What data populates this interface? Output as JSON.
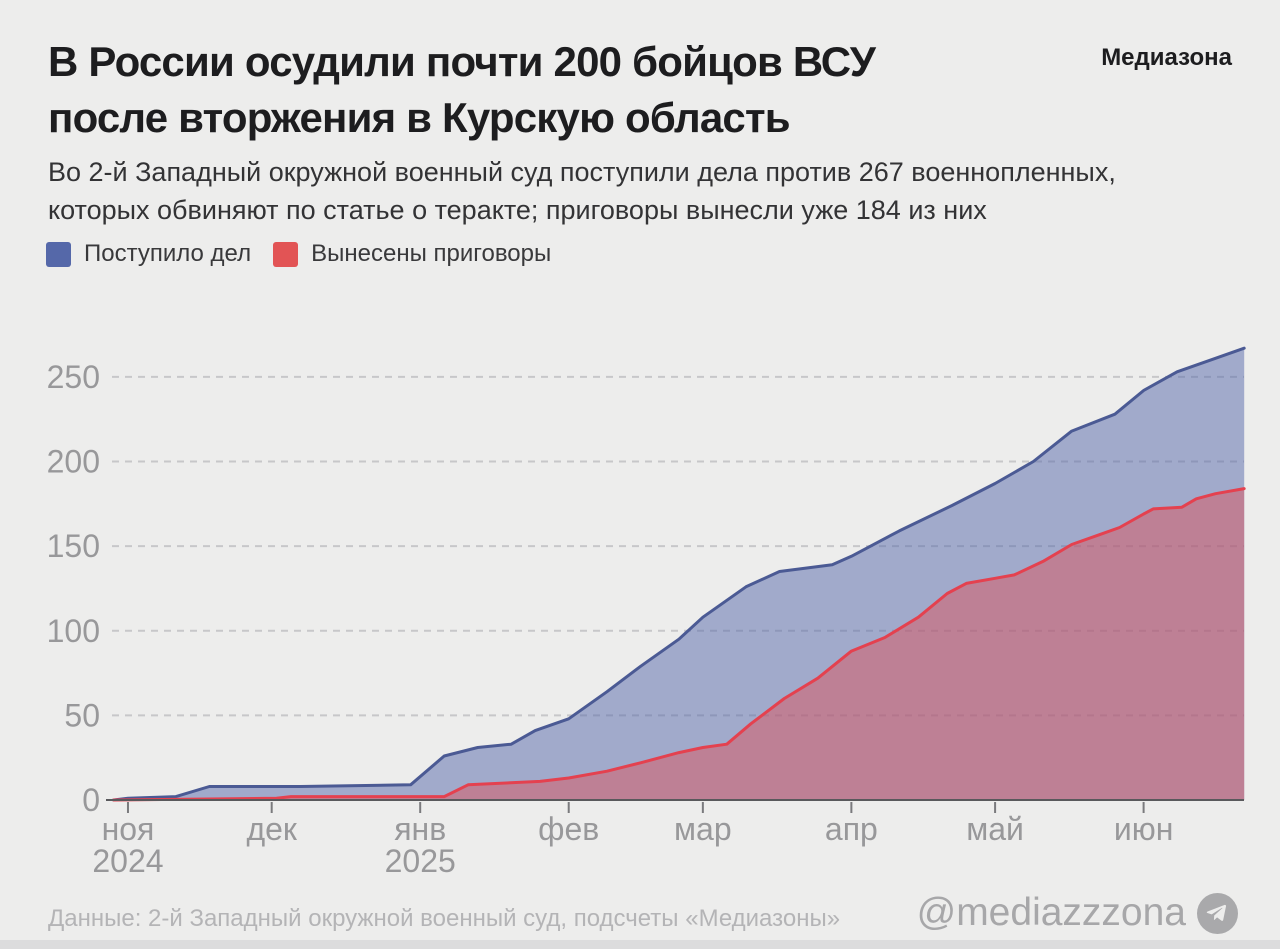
{
  "page": {
    "background": "#ededec"
  },
  "header": {
    "brand": "Медиазона",
    "title_line1": "В России осудили почти 200 бойцов ВСУ",
    "title_line2": "после вторжения в Курскую область",
    "subtitle_line1": "Во 2-й Западный окружной военный суд поступили дела против 267 военнопленных,",
    "subtitle_line2": "которых обвиняют по статье о теракте; приговоры вынесли уже 184 из них"
  },
  "legend": {
    "items": [
      {
        "label": "Поступило дел",
        "color": "#5568a9"
      },
      {
        "label": "Вынесены приговоры",
        "color": "#e25455"
      }
    ]
  },
  "footer": {
    "source": "Данные: 2-й Западный окружной военный суд, подсчеты «Медиазоны»",
    "handle": "@mediazzzona",
    "icon": "telegram-plane-icon"
  },
  "chart_data": {
    "type": "area",
    "title": "",
    "xlabel": "",
    "ylabel": "",
    "grid": "dashed-horizontal",
    "legend_position": "top-left",
    "x_axis": {
      "start": "2024-10-29",
      "end": "2025-06-22",
      "ticks": [
        {
          "date": "2024-11-01",
          "label": "ноя",
          "year_label": "2024"
        },
        {
          "date": "2024-12-01",
          "label": "дек",
          "year_label": ""
        },
        {
          "date": "2025-01-01",
          "label": "янв",
          "year_label": "2025"
        },
        {
          "date": "2025-02-01",
          "label": "фев",
          "year_label": ""
        },
        {
          "date": "2025-03-01",
          "label": "мар",
          "year_label": ""
        },
        {
          "date": "2025-04-01",
          "label": "апр",
          "year_label": ""
        },
        {
          "date": "2025-05-01",
          "label": "май",
          "year_label": ""
        },
        {
          "date": "2025-06-01",
          "label": "июн",
          "year_label": ""
        }
      ]
    },
    "y_axis": {
      "ticks": [
        0,
        50,
        100,
        150,
        200,
        250
      ],
      "range": [
        0,
        267
      ]
    },
    "series": [
      {
        "name": "Поступило дел",
        "line_color": "#4b5a94",
        "fill_color": "rgba(85,104,169,0.5)",
        "points": [
          [
            "2024-10-29",
            0
          ],
          [
            "2024-11-01",
            1
          ],
          [
            "2024-11-11",
            2
          ],
          [
            "2024-11-18",
            8
          ],
          [
            "2024-12-07",
            8
          ],
          [
            "2024-12-30",
            9
          ],
          [
            "2025-01-06",
            26
          ],
          [
            "2025-01-13",
            31
          ],
          [
            "2025-01-20",
            33
          ],
          [
            "2025-01-25",
            41
          ],
          [
            "2025-02-01",
            48
          ],
          [
            "2025-02-09",
            64
          ],
          [
            "2025-02-16",
            79
          ],
          [
            "2025-02-24",
            95
          ],
          [
            "2025-03-01",
            108
          ],
          [
            "2025-03-10",
            126
          ],
          [
            "2025-03-17",
            135
          ],
          [
            "2025-03-28",
            139
          ],
          [
            "2025-04-01",
            144
          ],
          [
            "2025-04-11",
            159
          ],
          [
            "2025-04-22",
            174
          ],
          [
            "2025-05-01",
            187
          ],
          [
            "2025-05-09",
            200
          ],
          [
            "2025-05-17",
            218
          ],
          [
            "2025-05-26",
            228
          ],
          [
            "2025-06-01",
            242
          ],
          [
            "2025-06-08",
            253
          ],
          [
            "2025-06-16",
            261
          ],
          [
            "2025-06-22",
            267
          ]
        ]
      },
      {
        "name": "Вынесены приговоры",
        "line_color": "#e4414f",
        "fill_color": "rgba(224,80,90,0.47)",
        "points": [
          [
            "2024-10-29",
            0
          ],
          [
            "2024-12-02",
            1
          ],
          [
            "2024-12-05",
            2
          ],
          [
            "2025-01-06",
            2
          ],
          [
            "2025-01-11",
            9
          ],
          [
            "2025-01-26",
            11
          ],
          [
            "2025-02-01",
            13
          ],
          [
            "2025-02-09",
            17
          ],
          [
            "2025-02-16",
            22
          ],
          [
            "2025-02-24",
            28
          ],
          [
            "2025-03-01",
            31
          ],
          [
            "2025-03-06",
            33
          ],
          [
            "2025-03-11",
            45
          ],
          [
            "2025-03-18",
            60
          ],
          [
            "2025-03-25",
            72
          ],
          [
            "2025-04-01",
            88
          ],
          [
            "2025-04-08",
            96
          ],
          [
            "2025-04-15",
            108
          ],
          [
            "2025-04-21",
            122
          ],
          [
            "2025-04-25",
            128
          ],
          [
            "2025-05-01",
            131
          ],
          [
            "2025-05-05",
            133
          ],
          [
            "2025-05-11",
            141
          ],
          [
            "2025-05-17",
            151
          ],
          [
            "2025-05-23",
            157
          ],
          [
            "2025-05-27",
            161
          ],
          [
            "2025-06-01",
            169
          ],
          [
            "2025-06-03",
            172
          ],
          [
            "2025-06-09",
            173
          ],
          [
            "2025-06-12",
            178
          ],
          [
            "2025-06-16",
            181
          ],
          [
            "2025-06-22",
            184
          ]
        ]
      }
    ]
  }
}
